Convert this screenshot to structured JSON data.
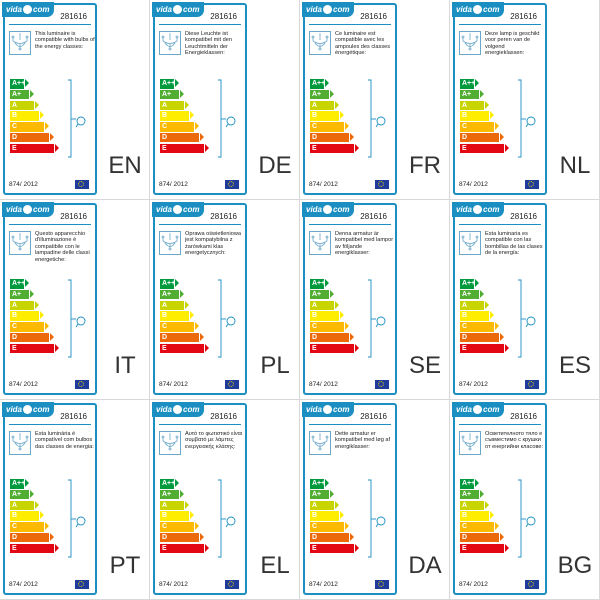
{
  "brand": "vida",
  "brand_suffix": "com",
  "product_code": "281616",
  "regulation": "874/ 2012",
  "energy_classes": [
    {
      "label": "A++",
      "color": "#009a3e"
    },
    {
      "label": "A+",
      "color": "#52ae32"
    },
    {
      "label": "A",
      "color": "#c8d400"
    },
    {
      "label": "B",
      "color": "#ffed00"
    },
    {
      "label": "C",
      "color": "#fbba00"
    },
    {
      "label": "D",
      "color": "#eb6909"
    },
    {
      "label": "E",
      "color": "#e30613"
    }
  ],
  "labels": [
    {
      "lang": "EN",
      "text": "This luminaire is compatible with bulbs of the energy classes:"
    },
    {
      "lang": "DE",
      "text": "Diese Leuchte ist kompatibel mit den Leuchtmitteln der Energieklassen:"
    },
    {
      "lang": "FR",
      "text": "Ce luminaire est compatible avec les ampoules des classes énergétique:"
    },
    {
      "lang": "NL",
      "text": "Deze lamp is geschikt voor peren van de volgend energieklassen:"
    },
    {
      "lang": "IT",
      "text": "Questo apparecchio d'illuminazione è compatibile con le lampadine delle classi energetiche:"
    },
    {
      "lang": "PL",
      "text": "Oprawa oświetleniowa jest kompatybilna z żarówkami klas energetycznych:"
    },
    {
      "lang": "SE",
      "text": "Denna armatur är kompatibel med lampor av följande energiklasser:"
    },
    {
      "lang": "ES",
      "text": "Esta luminaria es compatible con las bombillas de las clases de la energía:"
    },
    {
      "lang": "PT",
      "text": "Esta luminária é compatível com bulbos das classes de energia:"
    },
    {
      "lang": "EL",
      "text": "Αυτό το φωτιστικό είναι συμβατό με λάμπες ενεργειακής κλάσης:"
    },
    {
      "lang": "DA",
      "text": "Dette armatur er kompatibel med løg af energiklasser:"
    },
    {
      "lang": "BG",
      "text": "Осветителното тяло е съвместимо с крушки от енергийни класове:"
    }
  ],
  "icons": {
    "lamp": "chandelier-icon",
    "bulb": "bulb-icon",
    "flag": "eu-flag-icon"
  },
  "accent_color": "#1b8fc2"
}
